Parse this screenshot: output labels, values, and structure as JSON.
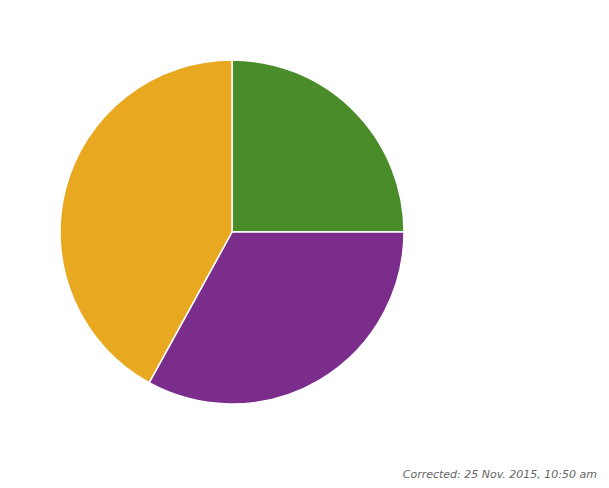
{
  "chart_data": {
    "type": "pie",
    "values": [
      25,
      33,
      42
    ],
    "colors": [
      "#4a8b2a",
      "#7b2d8b",
      "#e8a820"
    ],
    "annotations": [
      "Corrected: 25 Nov. 2015, 10:50 am"
    ]
  }
}
